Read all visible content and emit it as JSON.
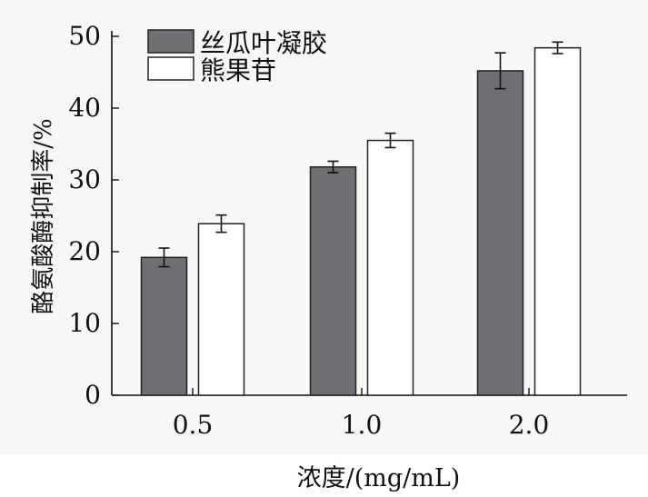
{
  "chart_data": {
    "type": "bar",
    "categories": [
      "0.5",
      "1.0",
      "2.0"
    ],
    "series": [
      {
        "name": "丝瓜叶凝胶",
        "values": [
          19.2,
          31.8,
          45.2
        ],
        "errors": [
          1.3,
          0.8,
          2.5
        ],
        "color": "#6e6f73"
      },
      {
        "name": "熊果苷",
        "values": [
          23.9,
          35.5,
          48.4
        ],
        "errors": [
          1.2,
          1.0,
          0.8
        ],
        "color": "#ffffff"
      }
    ],
    "title": "",
    "xlabel": "浓度/(mg/mL)",
    "ylabel": "酪氨酸酶抑制率/%",
    "ylim": [
      0,
      50
    ],
    "yticks": [
      "0",
      "10",
      "20",
      "30",
      "40",
      "50"
    ],
    "grid": false,
    "legend_position": "top-left"
  }
}
